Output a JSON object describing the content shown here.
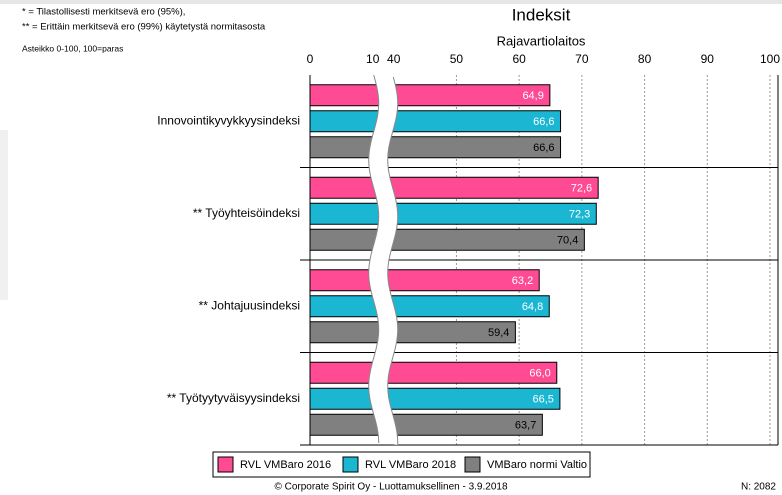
{
  "chart_data": {
    "type": "hbar",
    "title": "Indeksit",
    "subtitle": "Rajavartiolaitos",
    "notes": [
      "* = Tilastollisesti merkitsevä ero (95%),",
      "** = Erittäin merkitsevä ero (99%) käytetystä normitasosta"
    ],
    "scale_note": "Asteikko 0-100, 100=paras",
    "footer": "© Corporate Spirit Oy - Luottamuksellinen - 3.9.2018",
    "n_label": "N: 2082",
    "categories": [
      "Innovointikyvykkyysindeksi",
      "**  Työyhteisöindeksi",
      "**  Johtajuusindeksi",
      "**  Työtyytyväisyysindeksi"
    ],
    "series": [
      {
        "name": "RVL VMBaro 2016",
        "color": "#ff4b94",
        "label_color": "#ffffff",
        "values": [
          64.9,
          72.6,
          63.2,
          66.0
        ],
        "value_labels": [
          "64,9",
          "72,6",
          "63,2",
          "66,0"
        ]
      },
      {
        "name": "RVL VMBaro 2018",
        "color": "#1bb7d2",
        "label_color": "#ffffff",
        "values": [
          66.6,
          72.3,
          64.8,
          66.5
        ],
        "value_labels": [
          "66,6",
          "72,3",
          "64,8",
          "66,5"
        ]
      },
      {
        "name": "VMBaro normi Valtio",
        "color": "#808080",
        "label_color": "#000000",
        "values": [
          66.6,
          70.4,
          59.4,
          63.7
        ],
        "value_labels": [
          "66,6",
          "70,4",
          "59,4",
          "63,7"
        ]
      }
    ],
    "xlim": [
      0,
      100
    ],
    "xbreak": [
      10,
      40
    ],
    "xticks": [
      0,
      10,
      40,
      50,
      60,
      70,
      80,
      90,
      100
    ],
    "grid": true
  }
}
